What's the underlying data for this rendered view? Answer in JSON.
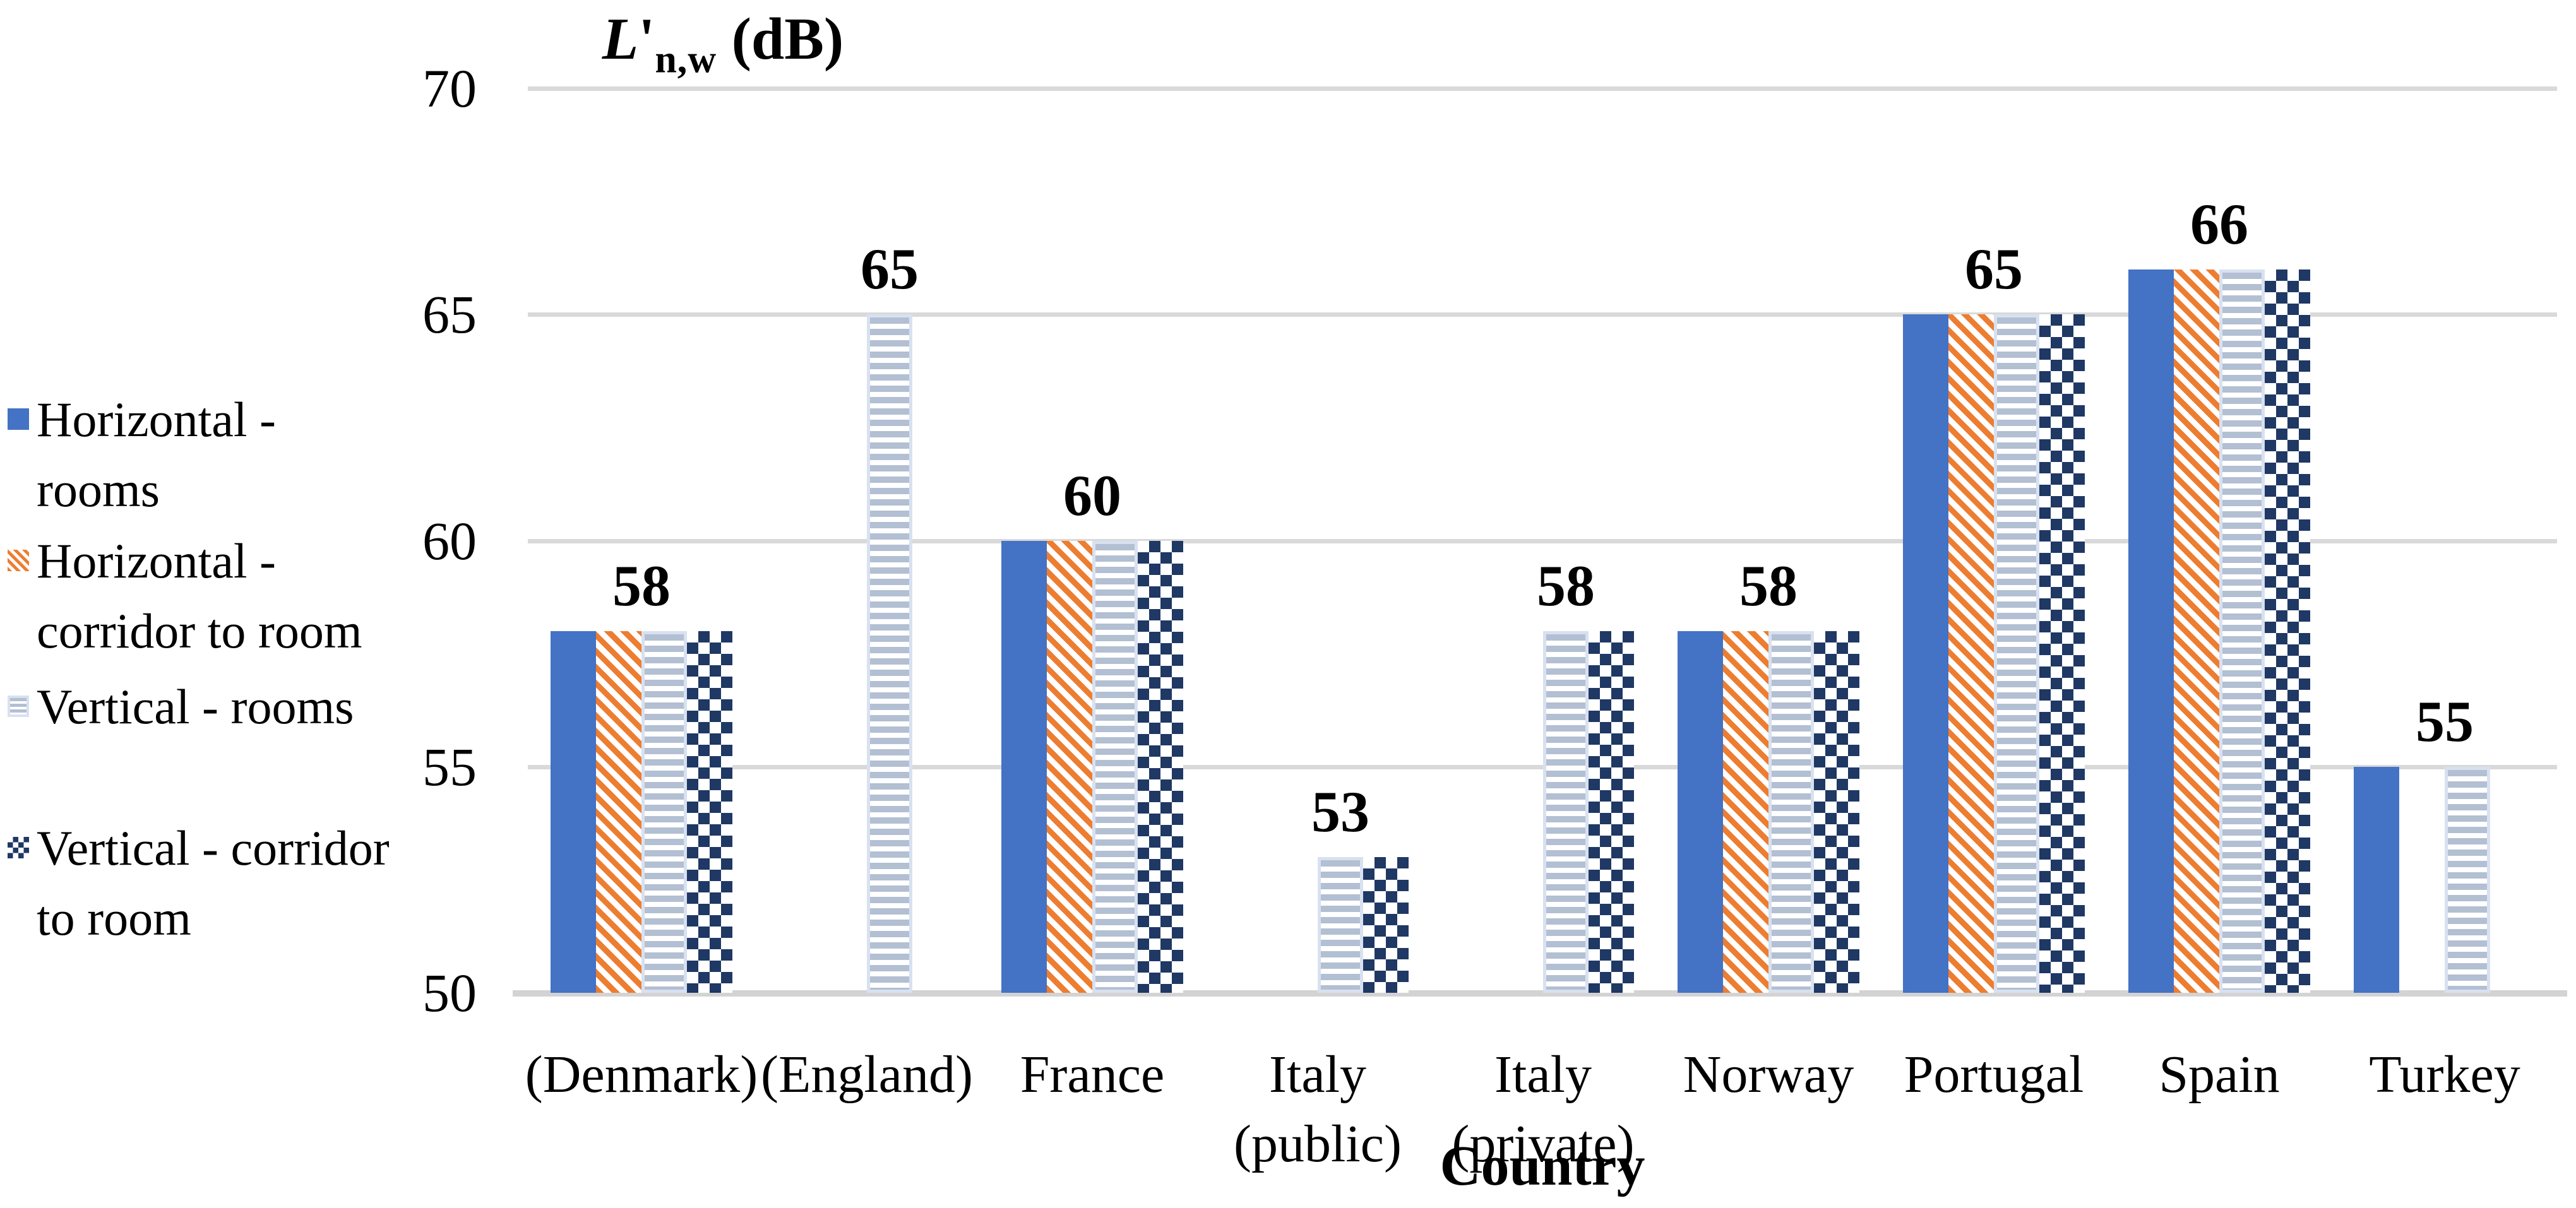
{
  "colors": {
    "series_blue": "#4472C4",
    "series_orange": "#ED7D31",
    "series_light_stripe": "#B3BFD2",
    "series_light_stripe_border": "#D8E1F0",
    "series_navy_checker": "#1F3864",
    "gridline": "#D9D9D9",
    "axis_line": "#D3D3D3",
    "text": "#000000",
    "background": "#FFFFFF"
  },
  "chart_data": {
    "type": "bar",
    "title": {
      "main": "L",
      "prime": "'",
      "sub": "n,w",
      "unit": " (dB)"
    },
    "xlabel": "Country",
    "ylabel": "",
    "ylim": [
      50,
      70
    ],
    "yticks": [
      70,
      65,
      60,
      55,
      50
    ],
    "grid": true,
    "legend_position": "left",
    "categories": [
      {
        "key": "denmark",
        "lines": [
          "(Denmark)"
        ]
      },
      {
        "key": "england",
        "lines": [
          "(England)"
        ]
      },
      {
        "key": "france",
        "lines": [
          "France"
        ]
      },
      {
        "key": "italy-public",
        "lines": [
          "Italy",
          "(public)"
        ]
      },
      {
        "key": "italy-private",
        "lines": [
          "Italy",
          "(private)"
        ]
      },
      {
        "key": "norway",
        "lines": [
          "Norway"
        ]
      },
      {
        "key": "portugal",
        "lines": [
          "Portugal"
        ]
      },
      {
        "key": "spain",
        "lines": [
          "Spain"
        ]
      },
      {
        "key": "turkey",
        "lines": [
          "Turkey"
        ]
      }
    ],
    "series": [
      {
        "key": "horizontal-rooms",
        "name": "Horizontal - rooms",
        "pattern": "solid-blue",
        "values": [
          58,
          null,
          60,
          null,
          null,
          58,
          65,
          66,
          55
        ]
      },
      {
        "key": "horizontal-corridor-to-room",
        "name": "Horizontal - corridor to room",
        "pattern": "orange-diagonal-stripes",
        "values": [
          58,
          null,
          60,
          null,
          null,
          58,
          65,
          66,
          null
        ]
      },
      {
        "key": "vertical-rooms",
        "name": "Vertical - rooms",
        "pattern": "light-horizontal-stripes",
        "values": [
          58,
          65,
          60,
          53,
          58,
          58,
          65,
          66,
          55
        ]
      },
      {
        "key": "vertical-corridor-to-room",
        "name": "Vertical - corridor to room",
        "pattern": "navy-checkerboard",
        "values": [
          58,
          null,
          60,
          53,
          58,
          58,
          65,
          66,
          null
        ]
      }
    ],
    "data_labels": [
      {
        "category": "denmark",
        "text": "58",
        "anchor": "group"
      },
      {
        "category": "england",
        "text": "65",
        "anchor": "slot3"
      },
      {
        "category": "france",
        "text": "60",
        "anchor": "group"
      },
      {
        "category": "italy-public",
        "text": "53",
        "anchor": "slot3"
      },
      {
        "category": "italy-private",
        "text": "58",
        "anchor": "slot3"
      },
      {
        "category": "norway",
        "text": "58",
        "anchor": "group"
      },
      {
        "category": "portugal",
        "text": "65",
        "anchor": "group"
      },
      {
        "category": "spain",
        "text": "66",
        "anchor": "group"
      },
      {
        "category": "turkey",
        "text": "55",
        "anchor": "group"
      }
    ],
    "legend": [
      {
        "series": "horizontal-rooms",
        "lines": [
          "Horizontal -",
          "rooms"
        ]
      },
      {
        "series": "horizontal-corridor-to-room",
        "lines": [
          "Horizontal -",
          "corridor to room"
        ]
      },
      {
        "series": "vertical-rooms",
        "lines": [
          "Vertical - rooms"
        ]
      },
      {
        "series": "vertical-corridor-to-room",
        "lines": [
          "Vertical - corridor",
          "to room"
        ]
      }
    ]
  }
}
